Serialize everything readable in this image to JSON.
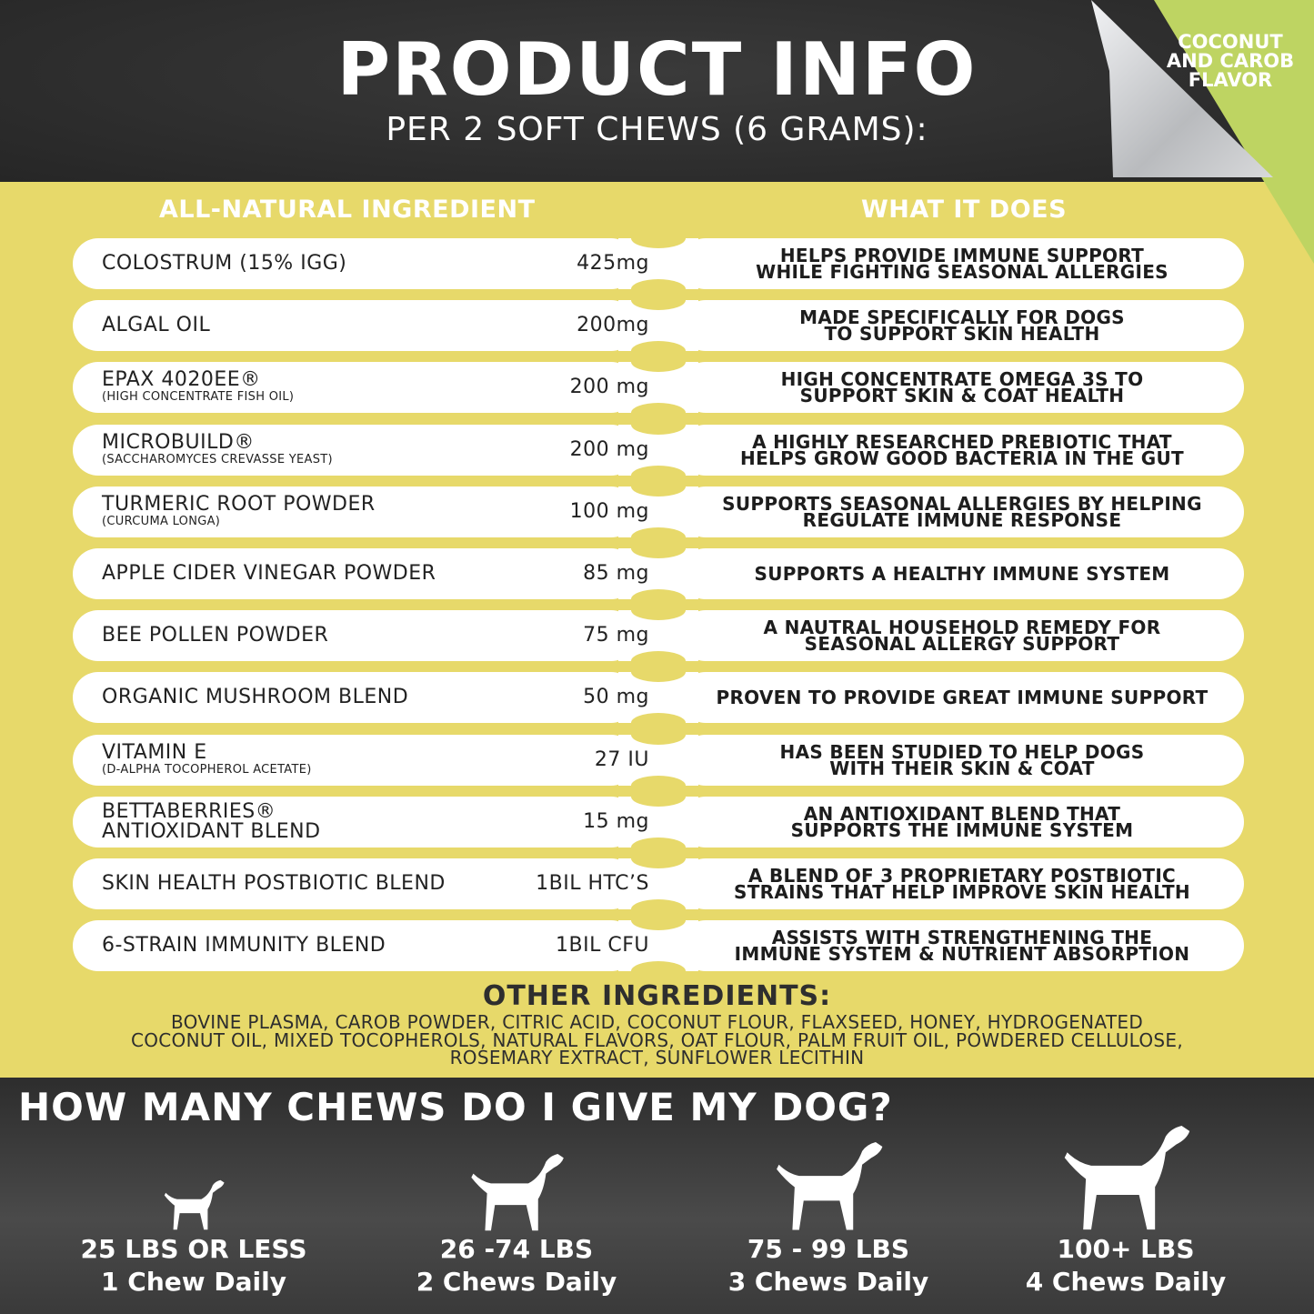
{
  "header": {
    "title": "PRODUCT INFO",
    "subtitle": "PER 2 SOFT CHEWS (6 GRAMS):",
    "flavor": [
      "COCONUT",
      "AND CAROB",
      "FLAVOR"
    ]
  },
  "colors": {
    "dark": "#2b2b2b",
    "yellow": "#e7d96a",
    "green": "#bed462"
  },
  "columns": {
    "left": "ALL-NATURAL INGREDIENT",
    "right": "WHAT IT DOES"
  },
  "rows": [
    {
      "name": "COLOSTRUM (15% IGG)",
      "sub": "",
      "amount": "425mg",
      "does": [
        "HELPS PROVIDE IMMUNE SUPPORT",
        "WHILE FIGHTING SEASONAL ALLERGIES"
      ]
    },
    {
      "name": "ALGAL OIL",
      "sub": "",
      "amount": "200mg",
      "does": [
        "MADE SPECIFICALLY FOR DOGS",
        "TO SUPPORT SKIN HEALTH"
      ]
    },
    {
      "name": "EPAX 4020EE®",
      "sub": "(HIGH CONCENTRATE FISH OIL)",
      "amount": "200 mg",
      "does": [
        "HIGH CONCENTRATE OMEGA 3S TO",
        "SUPPORT SKIN & COAT HEALTH"
      ]
    },
    {
      "name": "MICROBUILD®",
      "sub": "(SACCHAROMYCES CREVASSE YEAST)",
      "amount": "200 mg",
      "does": [
        "A HIGHLY RESEARCHED PREBIOTIC THAT",
        "HELPS GROW GOOD BACTERIA IN THE GUT"
      ]
    },
    {
      "name": "TURMERIC ROOT POWDER",
      "sub": "(CURCUMA LONGA)",
      "amount": "100 mg",
      "does": [
        "SUPPORTS SEASONAL ALLERGIES BY HELPING",
        "REGULATE IMMUNE RESPONSE"
      ]
    },
    {
      "name": "APPLE CIDER VINEGAR POWDER",
      "sub": "",
      "amount": "85 mg",
      "does": [
        "SUPPORTS A HEALTHY IMMUNE SYSTEM"
      ]
    },
    {
      "name": "BEE POLLEN POWDER",
      "sub": "",
      "amount": "75 mg",
      "does": [
        "A NAUTRAL HOUSEHOLD REMEDY FOR",
        "SEASONAL ALLERGY SUPPORT"
      ]
    },
    {
      "name": "ORGANIC MUSHROOM BLEND",
      "sub": "",
      "amount": "50 mg",
      "does": [
        "PROVEN TO PROVIDE GREAT IMMUNE SUPPORT"
      ]
    },
    {
      "name": "VITAMIN E",
      "sub": "(D-ALPHA TOCOPHEROL ACETATE)",
      "amount": "27 IU",
      "does": [
        "HAS BEEN STUDIED TO HELP DOGS",
        "WITH THEIR SKIN & COAT"
      ]
    },
    {
      "name": "BETTABERRIES®",
      "sub": "ANTIOXIDANT BLEND",
      "amount": "15 mg",
      "does": [
        "AN ANTIOXIDANT BLEND THAT",
        "SUPPORTS THE IMMUNE SYSTEM"
      ]
    },
    {
      "name": "SKIN HEALTH POSTBIOTIC BLEND",
      "sub": "",
      "amount": "1BIL HTC’S",
      "does": [
        "A BLEND OF 3 PROPRIETARY POSTBIOTIC",
        "STRAINS THAT HELP IMPROVE SKIN HEALTH"
      ]
    },
    {
      "name": "6-STRAIN IMMUNITY BLEND",
      "sub": "",
      "amount": "1BIL CFU",
      "does": [
        "ASSISTS WITH STRENGTHENING THE",
        "IMMUNE SYSTEM & NUTRIENT ABSORPTION"
      ]
    }
  ],
  "other": {
    "title": "OTHER INGREDIENTS:",
    "text": "BOVINE PLASMA, CAROB POWDER, CITRIC ACID, COCONUT FLOUR, FLAXSEED, HONEY, HYDROGENATED COCONUT OIL, MIXED TOCOPHEROLS, NATURAL FLAVORS, OAT FLOUR, PALM FRUIT OIL, POWDERED CELLULOSE, ROSEMARY EXTRACT, SUNFLOWER LECITHIN"
  },
  "dosage": {
    "title": "HOW MANY CHEWS DO I GIVE MY DOG?",
    "items": [
      {
        "weight": "25 LBS OR LESS",
        "chews": "1 Chew Daily",
        "icon": "small-dog-icon"
      },
      {
        "weight": "26 -74 LBS",
        "chews": "2 Chews Daily",
        "icon": "medium-dog-icon"
      },
      {
        "weight": "75 - 99 LBS",
        "chews": "3 Chews Daily",
        "icon": "large-dog-icon"
      },
      {
        "weight": "100+ LBS",
        "chews": "4 Chews Daily",
        "icon": "giant-dog-icon"
      }
    ]
  }
}
